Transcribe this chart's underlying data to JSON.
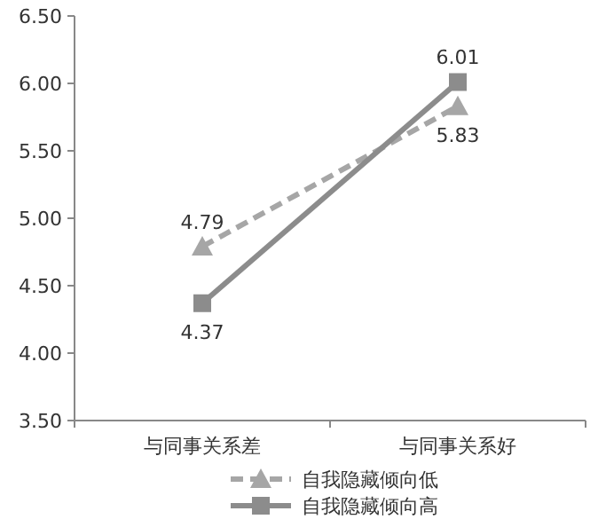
{
  "chart_data": {
    "type": "line",
    "categories": [
      "与同事关系差",
      "与同事关系好"
    ],
    "series": [
      {
        "name": "自我隐藏倾向低",
        "color": "#a6a6a6",
        "values": [
          4.79,
          5.83
        ],
        "marker": "triangle",
        "line_style": "dashed"
      },
      {
        "name": "自我隐藏倾向高",
        "color": "#8c8c8c",
        "values": [
          4.37,
          6.01
        ],
        "marker": "square",
        "line_style": "solid"
      }
    ],
    "ylim": [
      3.5,
      6.5
    ],
    "yticks": [
      {
        "value": 3.5,
        "label": "3.50"
      },
      {
        "value": 4,
        "label": "4.00"
      },
      {
        "value": 4.5,
        "label": "4.50"
      },
      {
        "value": 5,
        "label": "5.00"
      },
      {
        "value": 5.5,
        "label": "5.50"
      },
      {
        "value": 6,
        "label": "6.00"
      },
      {
        "value": 6.5,
        "label": "6.50"
      }
    ],
    "data_labels": true,
    "legend": "bottom",
    "grid": false
  }
}
